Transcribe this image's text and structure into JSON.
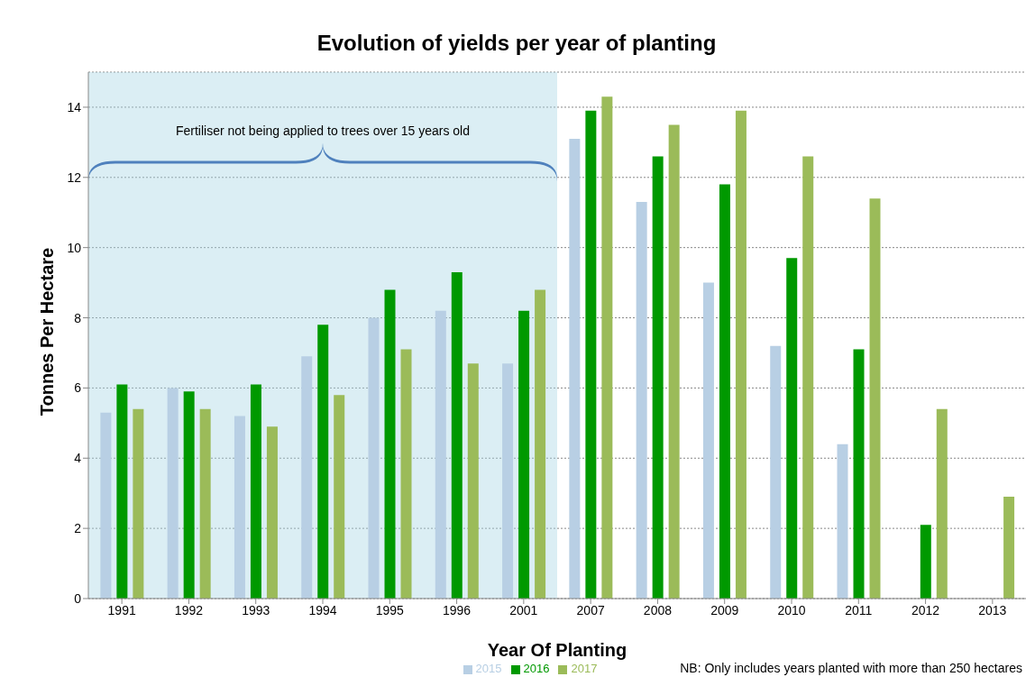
{
  "chart_data": {
    "type": "bar",
    "title": "Evolution of yields per year of planting",
    "xlabel": "Year Of Planting",
    "ylabel": "Tonnes Per Hectare",
    "categories": [
      "1991",
      "1992",
      "1993",
      "1994",
      "1995",
      "1996",
      "2001",
      "2007",
      "2008",
      "2009",
      "2010",
      "2011",
      "2012",
      "2013"
    ],
    "series": [
      {
        "name": "2015",
        "color": "#b8cfe4",
        "values": [
          5.3,
          6.0,
          5.2,
          6.9,
          8.0,
          8.2,
          6.7,
          13.1,
          11.3,
          9.0,
          7.2,
          4.4,
          null,
          null
        ]
      },
      {
        "name": "2016",
        "color": "#009900",
        "values": [
          6.1,
          5.9,
          6.1,
          7.8,
          8.8,
          9.3,
          8.2,
          13.9,
          12.6,
          11.8,
          9.7,
          7.1,
          2.1,
          null
        ]
      },
      {
        "name": "2017",
        "color": "#9bbb59",
        "values": [
          5.4,
          5.4,
          4.9,
          5.8,
          7.1,
          6.7,
          8.8,
          14.3,
          13.5,
          13.9,
          12.6,
          11.4,
          5.4,
          2.9
        ]
      }
    ],
    "ylim": [
      0,
      15
    ],
    "yticks": [
      0,
      2,
      4,
      6,
      8,
      10,
      12,
      14
    ],
    "grid": "y",
    "legend": "bottom",
    "bands": [
      {
        "axis": "x",
        "from": "1991",
        "to": "2001",
        "label": "Fertiliser not being applied to trees over 15 years old",
        "color": "#a5d5e3"
      }
    ],
    "annotations": [
      "NB: Only includes years planted with more than 250 hectares"
    ]
  }
}
